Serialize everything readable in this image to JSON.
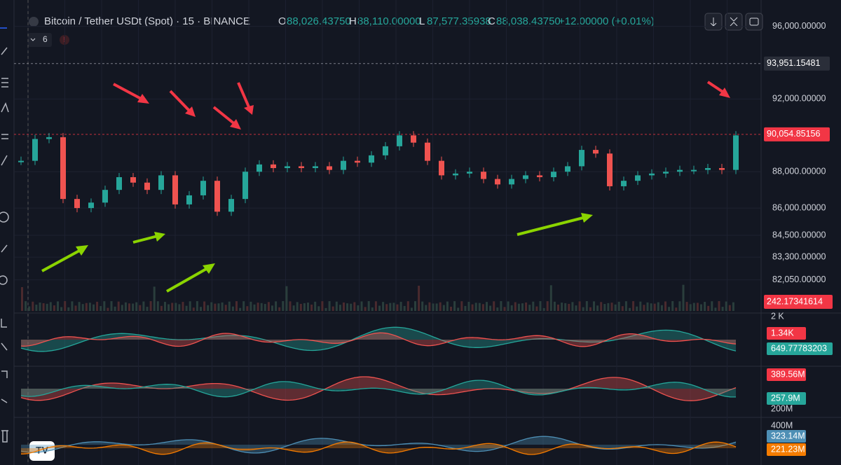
{
  "header": {
    "symbol": "Bitcoin / Tether USDt (Spot) · 15 · BINANCE",
    "open_key": "O",
    "open": "88,026.43750",
    "high_key": "H",
    "high": "88,110.00000",
    "low_key": "L",
    "low": "87,577.35938",
    "close_key": "C",
    "close": "88,038.43750",
    "change": "+12.00000 (+0.01%)",
    "indicator_count": "6"
  },
  "chart_data": {
    "type": "candlestick",
    "ylim": [
      80300,
      97450
    ],
    "yticks": [
      {
        "value": 96000,
        "label": "96,000.00000"
      },
      {
        "value": 92000,
        "label": "92,000.00000"
      },
      {
        "value": 88000,
        "label": "88,000.00000"
      },
      {
        "value": 86000,
        "label": "86,000.00000"
      },
      {
        "value": 84500,
        "label": "84,500.00000"
      },
      {
        "value": 83300,
        "label": "83,300.00000"
      },
      {
        "value": 82050,
        "label": "82,050.00000"
      }
    ],
    "price_tags": [
      {
        "value": 93951.15481,
        "label": "93,951.15481",
        "color": "#2a2e39"
      },
      {
        "value": 90054.85156,
        "label": "90,054.85156",
        "color": "#f23645"
      }
    ],
    "up_color": "#26a69a",
    "down_color": "#ef5350",
    "values": [
      88600,
      89800,
      89900,
      86500,
      86000,
      86300,
      87000,
      87700,
      87400,
      87000,
      87800,
      86200,
      86700,
      87500,
      85800,
      86500,
      88000,
      88400,
      88200,
      88300,
      88200,
      88300,
      88100,
      88600,
      88500,
      88900,
      89400,
      90000,
      89600,
      88600,
      87800,
      87900,
      88000,
      87600,
      87300,
      87600,
      87800,
      87700,
      88000,
      88300,
      89200,
      89000,
      87200,
      87500,
      87800,
      87900,
      88000,
      88100,
      88100,
      88200,
      88100,
      90000
    ]
  },
  "volume_tag": "242.17341614",
  "indicator_labels": {
    "pane1_top": "2 K",
    "pane1_red": "1.34K",
    "pane1_teal": "649.77783203",
    "pane2_red": "389.56M",
    "pane2_teal": "257.9M",
    "pane2_bottom": "200M",
    "pane3_top": "400M",
    "pane3_blue": "323.14M",
    "pane3_orange": "221.23M"
  }
}
